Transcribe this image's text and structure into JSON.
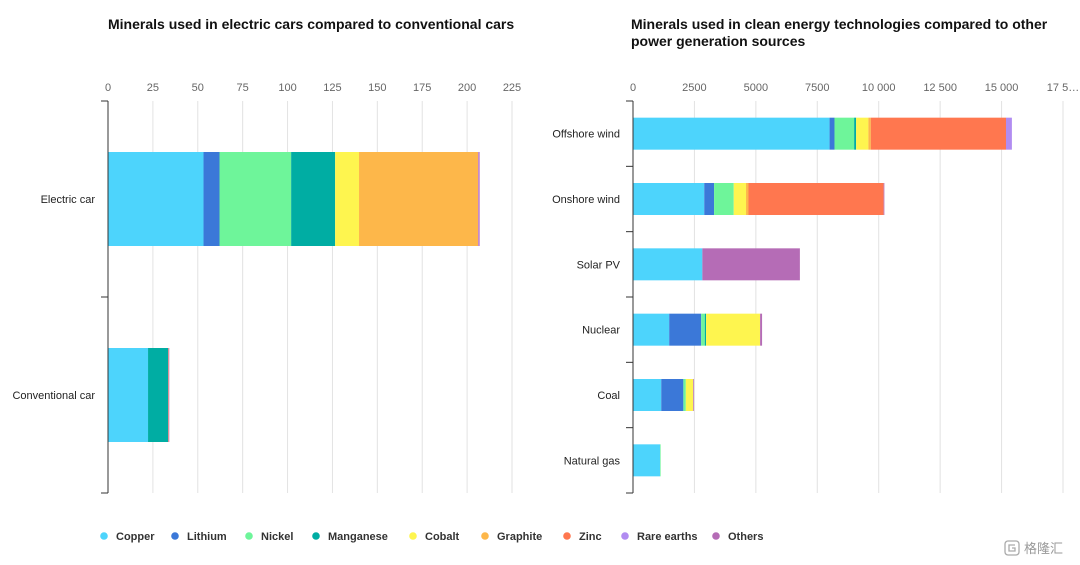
{
  "colors": {
    "Copper": "#4dd4fc",
    "Lithium": "#3b78d8",
    "Nickel": "#6ef59a",
    "Manganese": "#00ada3",
    "Cobalt": "#fef54f",
    "Graphite": "#fdb74a",
    "Zinc": "#ff774f",
    "Rare earths": "#b18cf1",
    "Others": "#b56cb6"
  },
  "legend": [
    "Copper",
    "Lithium",
    "Nickel",
    "Manganese",
    "Cobalt",
    "Graphite",
    "Zinc",
    "Rare earths",
    "Others"
  ],
  "watermark": {
    "text": "格隆汇"
  },
  "chart_data": [
    {
      "type": "bar",
      "orientation": "horizontal",
      "stacked": true,
      "title": "Minerals used in electric cars compared to conventional cars",
      "xlabel": "",
      "ylabel": "",
      "xlim": [
        0,
        225
      ],
      "ticks": [
        0,
        25,
        50,
        75,
        100,
        125,
        150,
        175,
        200,
        225
      ],
      "tick_labels": [
        "0",
        "25",
        "50",
        "75",
        "100",
        "125",
        "150",
        "175",
        "200",
        "225"
      ],
      "categories": [
        "Electric car",
        "Conventional car"
      ],
      "series": [
        {
          "name": "Copper",
          "values": [
            53.2,
            22.3
          ]
        },
        {
          "name": "Lithium",
          "values": [
            8.9,
            0
          ]
        },
        {
          "name": "Nickel",
          "values": [
            39.9,
            0
          ]
        },
        {
          "name": "Manganese",
          "values": [
            24.5,
            11.2
          ]
        },
        {
          "name": "Cobalt",
          "values": [
            13.3,
            0
          ]
        },
        {
          "name": "Graphite",
          "values": [
            66.3,
            0
          ]
        },
        {
          "name": "Zinc",
          "values": [
            0.1,
            0.3
          ]
        },
        {
          "name": "Rare earths",
          "values": [
            0.5,
            0
          ]
        },
        {
          "name": "Others",
          "values": [
            0.3,
            0.3
          ]
        }
      ]
    },
    {
      "type": "bar",
      "orientation": "horizontal",
      "stacked": true,
      "title": "Minerals used in clean energy technologies compared to other power generation sources",
      "title_lines": [
        "Minerals used in clean energy technologies compared to other",
        "power generation sources"
      ],
      "xlabel": "",
      "ylabel": "",
      "xlim": [
        0,
        17500
      ],
      "ticks": [
        0,
        2500,
        5000,
        7500,
        10000,
        12500,
        15000,
        17500
      ],
      "tick_labels": [
        "0",
        "2500",
        "5000",
        "7500",
        "10 000",
        "12 500",
        "15 000",
        "17 5…"
      ],
      "categories": [
        "Offshore wind",
        "Onshore wind",
        "Solar PV",
        "Nuclear",
        "Coal",
        "Natural gas"
      ],
      "series": [
        {
          "name": "Copper",
          "values": [
            8000,
            2900,
            2822,
            1473,
            1150,
            1100
          ]
        },
        {
          "name": "Lithium",
          "values": [
            200,
            400,
            0,
            1300,
            900,
            0
          ]
        },
        {
          "name": "Nickel",
          "values": [
            800,
            800,
            0,
            150,
            100,
            16
          ]
        },
        {
          "name": "Manganese",
          "values": [
            80,
            0,
            0,
            50,
            0,
            0
          ]
        },
        {
          "name": "Cobalt",
          "values": [
            500,
            500,
            0,
            2200,
            300,
            0
          ]
        },
        {
          "name": "Graphite",
          "values": [
            100,
            100,
            0,
            0,
            0,
            0
          ]
        },
        {
          "name": "Zinc",
          "values": [
            5500,
            5500,
            0,
            0,
            0,
            0
          ]
        },
        {
          "name": "Rare earths",
          "values": [
            240,
            0,
            0,
            0,
            0,
            0
          ]
        },
        {
          "name": "Others",
          "values": [
            0,
            30,
            3970,
            80,
            30,
            0
          ]
        }
      ]
    }
  ]
}
